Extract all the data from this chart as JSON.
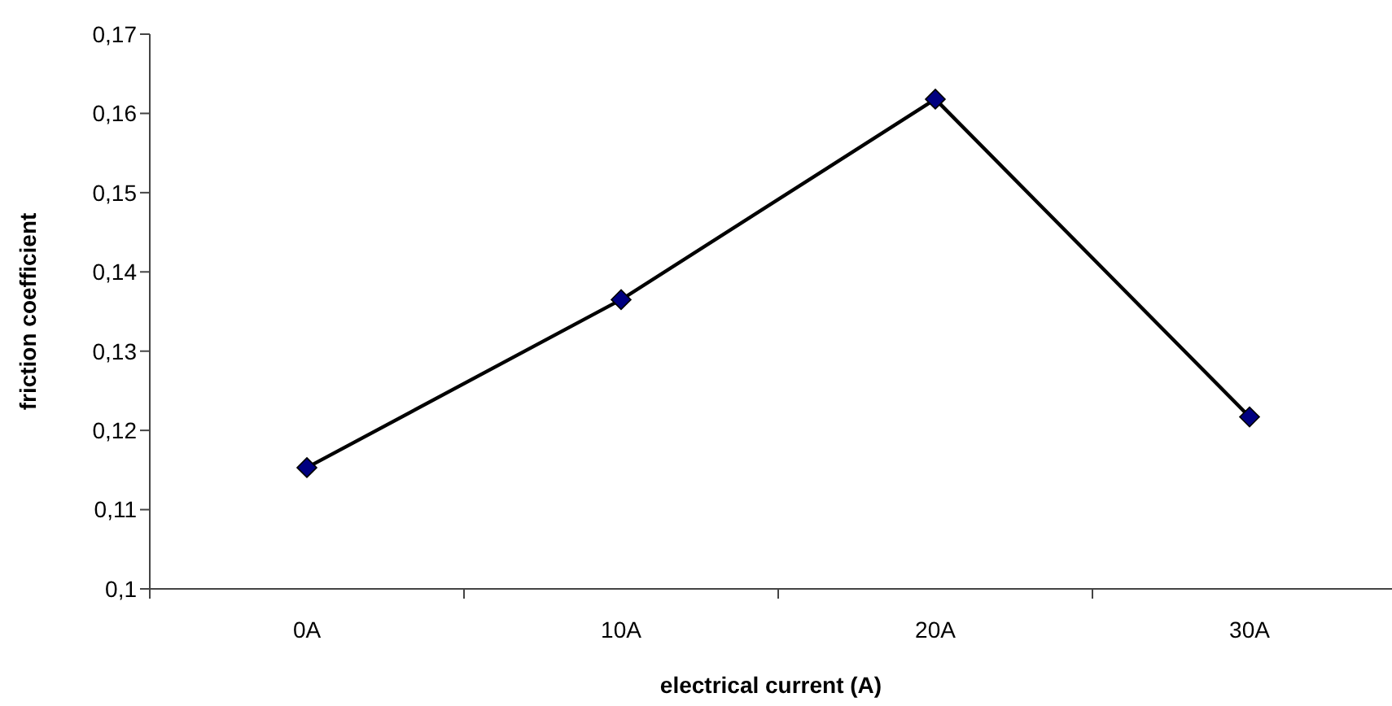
{
  "chart_data": {
    "type": "line",
    "xlabel": "electrical current (A)",
    "ylabel": "friction coefficient",
    "categories": [
      "0A",
      "10A",
      "20A",
      "30A"
    ],
    "series": [
      {
        "color": "#000000",
        "values": [
          0.1153,
          0.1365,
          0.1618,
          0.1217
        ]
      }
    ],
    "ylim": [
      0.1,
      0.17
    ],
    "yticks": [
      {
        "value": 0.1,
        "label": "0,1"
      },
      {
        "value": 0.11,
        "label": "0,11"
      },
      {
        "value": 0.12,
        "label": "0,12"
      },
      {
        "value": 0.13,
        "label": "0,13"
      },
      {
        "value": 0.14,
        "label": "0,14"
      },
      {
        "value": 0.15,
        "label": "0,15"
      },
      {
        "value": 0.16,
        "label": "0,16"
      },
      {
        "value": 0.17,
        "label": "0,17"
      }
    ],
    "marker": "diamond",
    "line_style": "solid",
    "grid": false
  }
}
